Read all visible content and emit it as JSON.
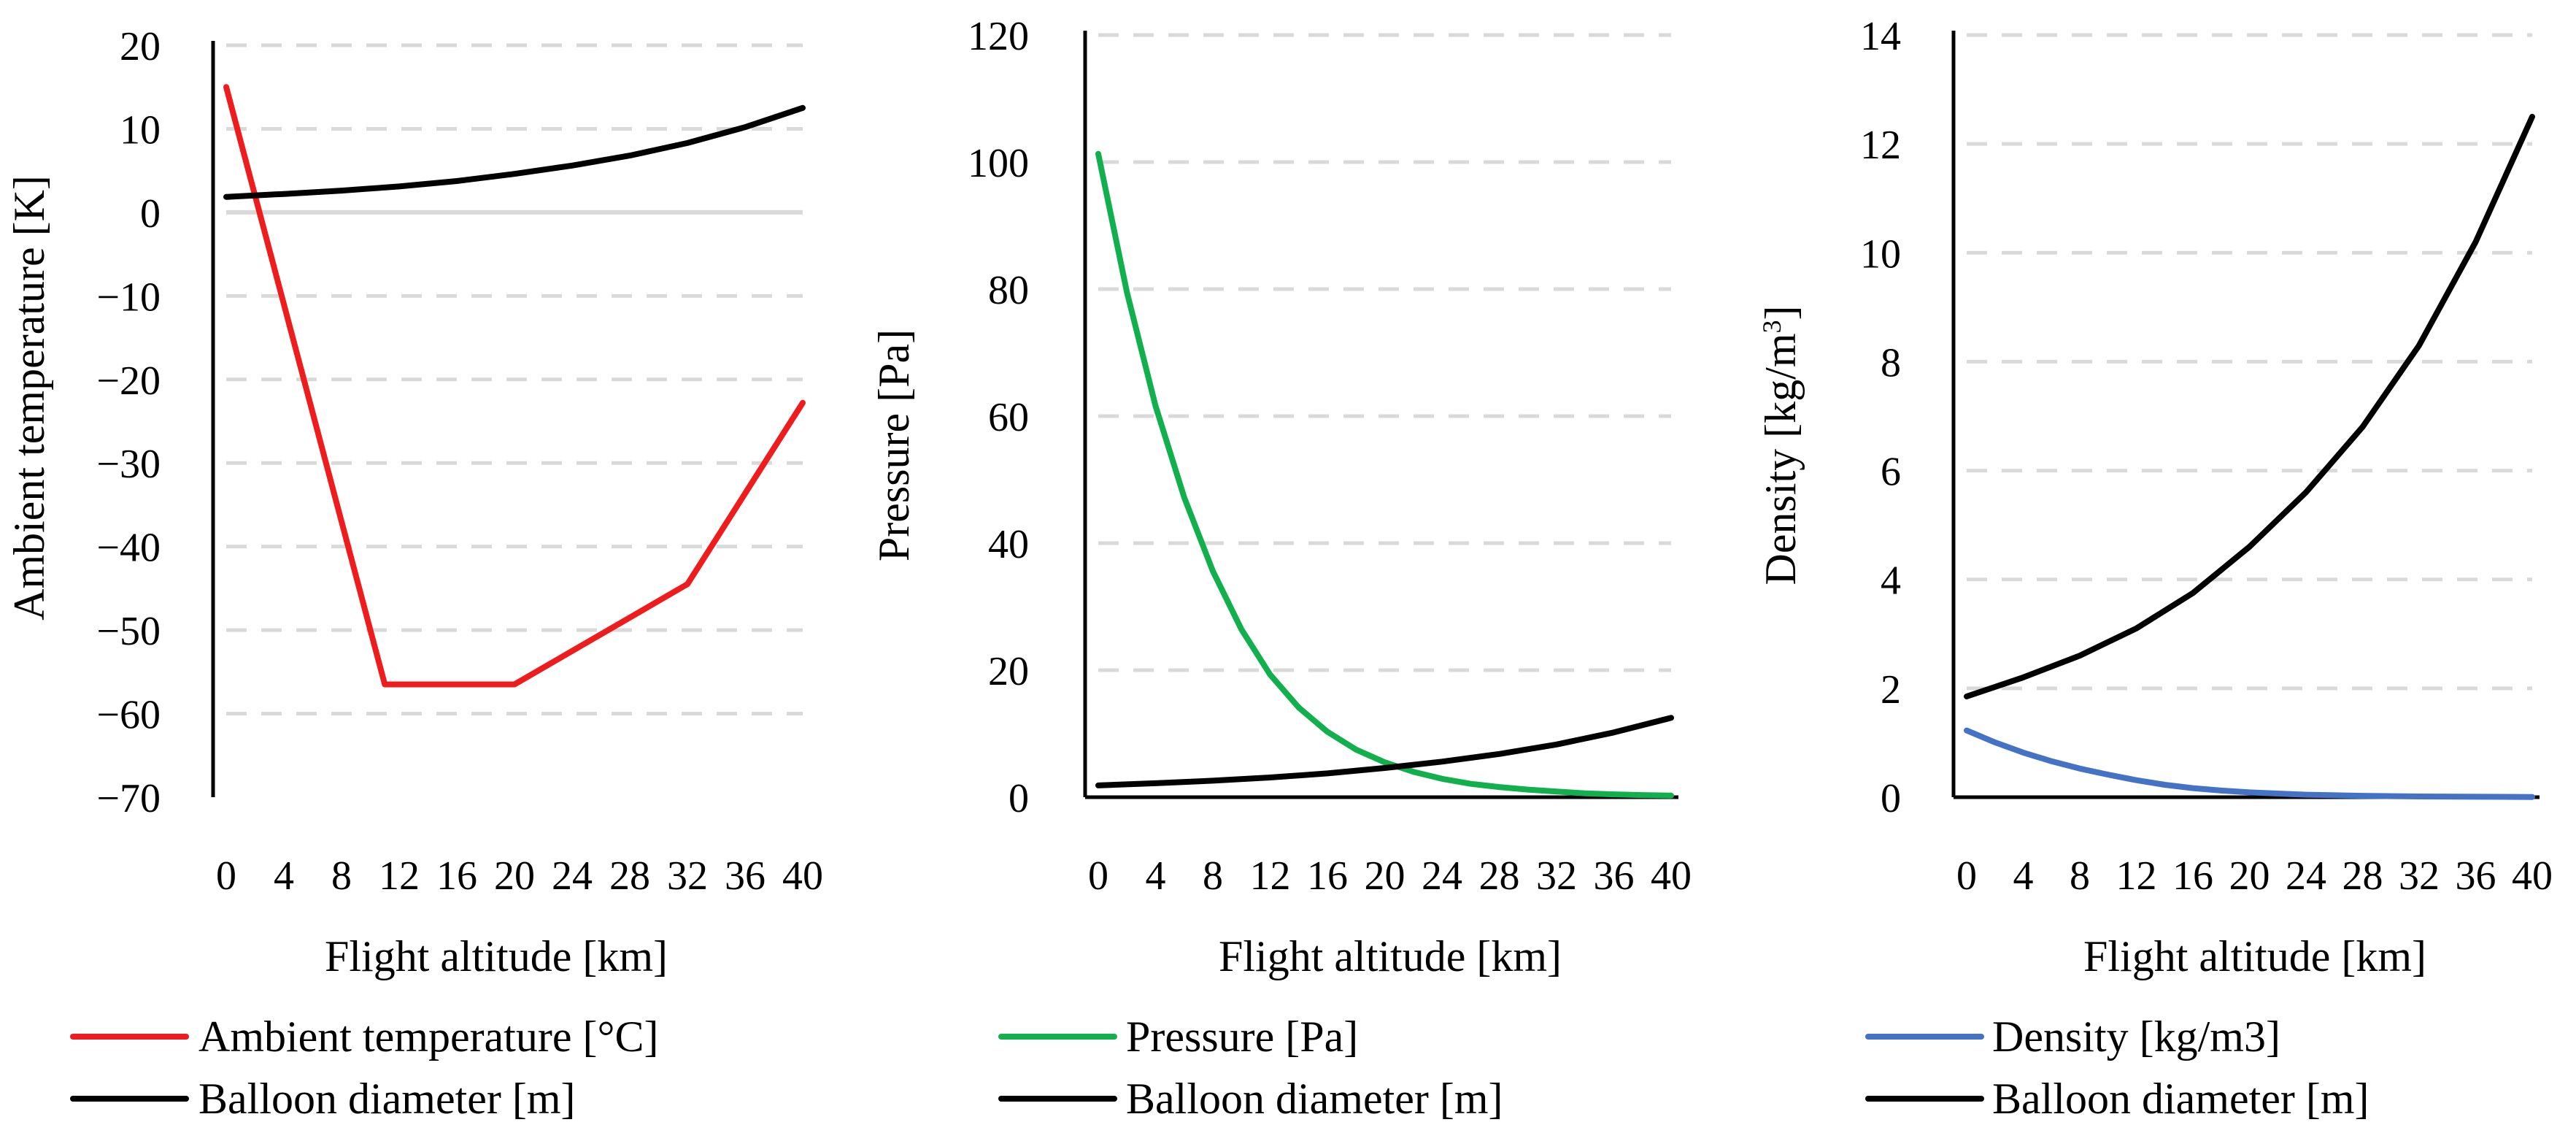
{
  "chart_data": [
    {
      "type": "line",
      "title": "",
      "xlabel": "Flight altitude [km]",
      "ylabel": "Ambient temperature [K]",
      "xlim": [
        0,
        40
      ],
      "ylim": [
        -70,
        20
      ],
      "y_ticks": [
        "20",
        "10",
        "0",
        "−10",
        "−20",
        "−30",
        "−40",
        "−50",
        "−60",
        "−70"
      ],
      "x_ticks": [
        "0",
        "4",
        "8",
        "12",
        "16",
        "20",
        "24",
        "28",
        "32",
        "36",
        "40"
      ],
      "grid": true,
      "legend_position": "bottom",
      "series": [
        {
          "name": "Ambient temperature [°C]",
          "color": "#ee1c1c",
          "x": [
            0,
            10,
            11,
            20,
            32,
            40
          ],
          "y": [
            15,
            -50,
            -56.5,
            -56.5,
            -44.5,
            -22.8
          ]
        },
        {
          "name": "Balloon diameter [m]",
          "color": "#000000",
          "x": [
            0,
            4,
            8,
            12,
            16,
            20,
            24,
            28,
            32,
            36,
            40
          ],
          "y": [
            1.85,
            2.2,
            2.6,
            3.1,
            3.75,
            4.6,
            5.6,
            6.8,
            8.3,
            10.2,
            12.5
          ]
        }
      ]
    },
    {
      "type": "line",
      "title": "",
      "xlabel": "Flight altitude [km]",
      "ylabel": "Pressure [Pa]",
      "xlim": [
        0,
        40
      ],
      "ylim": [
        0,
        120
      ],
      "y_ticks": [
        "120",
        "100",
        "80",
        "60",
        "40",
        "20",
        "0"
      ],
      "x_ticks": [
        "0",
        "4",
        "8",
        "12",
        "16",
        "20",
        "24",
        "28",
        "32",
        "36",
        "40"
      ],
      "grid": true,
      "legend_position": "bottom",
      "series": [
        {
          "name": "Pressure [Pa]",
          "color": "#12b04c",
          "x": [
            0,
            2,
            4,
            6,
            8,
            10,
            12,
            14,
            16,
            18,
            20,
            22,
            24,
            26,
            28,
            30,
            32,
            34,
            36,
            38,
            40
          ],
          "y": [
            101.3,
            79.5,
            61.6,
            47.2,
            35.6,
            26.4,
            19.3,
            14.1,
            10.3,
            7.5,
            5.5,
            4.0,
            2.9,
            2.1,
            1.6,
            1.2,
            0.9,
            0.6,
            0.45,
            0.33,
            0.25
          ]
        },
        {
          "name": "Balloon diameter [m]",
          "color": "#000000",
          "x": [
            0,
            4,
            8,
            12,
            16,
            20,
            24,
            28,
            32,
            36,
            40
          ],
          "y": [
            1.85,
            2.2,
            2.6,
            3.1,
            3.75,
            4.6,
            5.6,
            6.8,
            8.3,
            10.2,
            12.5
          ]
        }
      ]
    },
    {
      "type": "line",
      "title": "",
      "xlabel": "Flight altitude [km]",
      "ylabel": "Density [kg/m",
      "ylabel_superscript": "3",
      "ylabel_suffix": "]",
      "xlim": [
        0,
        40
      ],
      "ylim": [
        0,
        14
      ],
      "y_ticks": [
        "14",
        "12",
        "10",
        "8",
        "6",
        "4",
        "2",
        "0"
      ],
      "x_ticks": [
        "0",
        "4",
        "8",
        "12",
        "16",
        "20",
        "24",
        "28",
        "32",
        "36",
        "40"
      ],
      "grid": true,
      "legend_position": "bottom",
      "series": [
        {
          "name": "Density [kg/m3]",
          "color": "#4472c4",
          "x": [
            0,
            2,
            4,
            6,
            8,
            10,
            12,
            14,
            16,
            18,
            20,
            24,
            28,
            32,
            36,
            40
          ],
          "y": [
            1.225,
            1.007,
            0.819,
            0.66,
            0.526,
            0.414,
            0.312,
            0.228,
            0.166,
            0.122,
            0.089,
            0.046,
            0.025,
            0.014,
            0.008,
            0.004
          ]
        },
        {
          "name": "Balloon diameter [m]",
          "color": "#000000",
          "x": [
            0,
            4,
            8,
            12,
            16,
            20,
            24,
            28,
            32,
            36,
            40
          ],
          "y": [
            1.85,
            2.2,
            2.6,
            3.1,
            3.75,
            4.6,
            5.6,
            6.8,
            8.3,
            10.2,
            12.5
          ]
        }
      ]
    }
  ]
}
